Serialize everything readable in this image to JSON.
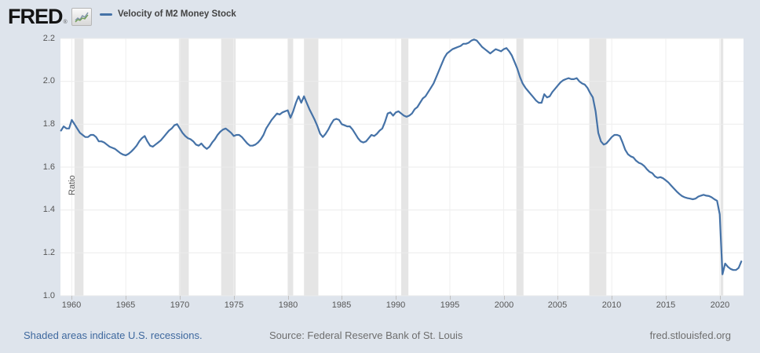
{
  "header": {
    "logo": "FRED",
    "registered": "®",
    "legend_label": "Velocity of M2 Money Stock"
  },
  "footer": {
    "note": "Shaded areas indicate U.S. recessions.",
    "source": "Source: Federal Reserve Bank of St. Louis",
    "site": "fred.stlouisfed.org"
  },
  "colors": {
    "background": "#dee4ec",
    "plot_background": "#ffffff",
    "line": "#4572a7",
    "gridline": "#ebebeb",
    "recession_band": "#e5e5e5",
    "axis_text": "#565656",
    "link_blue": "#3e689e"
  },
  "chart_data": {
    "type": "line",
    "title": "Velocity of M2 Money Stock",
    "ylabel": "Ratio",
    "legend_position": "top-left",
    "grid": true,
    "xlim": [
      1958.95,
      2022.2
    ],
    "ylim": [
      1.0,
      2.2
    ],
    "yticks": [
      1.0,
      1.2,
      1.4,
      1.6,
      1.8,
      2.0,
      2.2
    ],
    "xticks": [
      1960,
      1965,
      1970,
      1975,
      1980,
      1985,
      1990,
      1995,
      2000,
      2005,
      2010,
      2015,
      2020
    ],
    "x_start": 1959.0,
    "x_step": 0.25,
    "frequency": "quarterly",
    "recessions": [
      [
        1960.25,
        1961.08
      ],
      [
        1969.92,
        1970.83
      ],
      [
        1973.83,
        1975.17
      ],
      [
        1980.0,
        1980.5
      ],
      [
        1981.5,
        1982.83
      ],
      [
        1990.5,
        1991.17
      ],
      [
        2001.17,
        2001.83
      ],
      [
        2007.92,
        2009.5
      ],
      [
        2020.08,
        2020.33
      ]
    ],
    "values": [
      1.77,
      1.79,
      1.78,
      1.78,
      1.82,
      1.8,
      1.78,
      1.76,
      1.75,
      1.74,
      1.74,
      1.75,
      1.75,
      1.74,
      1.72,
      1.72,
      1.715,
      1.705,
      1.695,
      1.69,
      1.685,
      1.675,
      1.665,
      1.658,
      1.655,
      1.662,
      1.672,
      1.685,
      1.7,
      1.72,
      1.735,
      1.745,
      1.72,
      1.7,
      1.695,
      1.705,
      1.715,
      1.725,
      1.74,
      1.755,
      1.77,
      1.78,
      1.795,
      1.8,
      1.78,
      1.76,
      1.745,
      1.735,
      1.73,
      1.72,
      1.705,
      1.7,
      1.71,
      1.695,
      1.685,
      1.695,
      1.715,
      1.73,
      1.75,
      1.765,
      1.775,
      1.78,
      1.77,
      1.76,
      1.745,
      1.75,
      1.75,
      1.74,
      1.725,
      1.71,
      1.7,
      1.7,
      1.705,
      1.715,
      1.73,
      1.75,
      1.78,
      1.8,
      1.82,
      1.835,
      1.85,
      1.845,
      1.855,
      1.86,
      1.865,
      1.83,
      1.86,
      1.9,
      1.93,
      1.9,
      1.93,
      1.9,
      1.87,
      1.845,
      1.82,
      1.79,
      1.755,
      1.74,
      1.755,
      1.775,
      1.8,
      1.82,
      1.825,
      1.82,
      1.8,
      1.795,
      1.79,
      1.79,
      1.775,
      1.755,
      1.735,
      1.72,
      1.715,
      1.72,
      1.735,
      1.75,
      1.745,
      1.755,
      1.77,
      1.78,
      1.81,
      1.85,
      1.855,
      1.84,
      1.855,
      1.86,
      1.85,
      1.84,
      1.835,
      1.84,
      1.85,
      1.87,
      1.88,
      1.9,
      1.92,
      1.93,
      1.95,
      1.97,
      1.99,
      2.02,
      2.05,
      2.08,
      2.11,
      2.13,
      2.14,
      2.15,
      2.155,
      2.16,
      2.165,
      2.175,
      2.175,
      2.18,
      2.19,
      2.195,
      2.19,
      2.175,
      2.16,
      2.15,
      2.14,
      2.13,
      2.14,
      2.15,
      2.145,
      2.14,
      2.15,
      2.155,
      2.14,
      2.12,
      2.09,
      2.06,
      2.02,
      1.99,
      1.97,
      1.955,
      1.94,
      1.925,
      1.91,
      1.9,
      1.9,
      1.94,
      1.925,
      1.93,
      1.95,
      1.965,
      1.98,
      1.995,
      2.005,
      2.01,
      2.015,
      2.01,
      2.01,
      2.015,
      2.0,
      1.99,
      1.985,
      1.97,
      1.945,
      1.925,
      1.86,
      1.76,
      1.72,
      1.705,
      1.71,
      1.725,
      1.74,
      1.75,
      1.75,
      1.745,
      1.715,
      1.68,
      1.66,
      1.65,
      1.645,
      1.63,
      1.62,
      1.615,
      1.605,
      1.59,
      1.578,
      1.572,
      1.557,
      1.55,
      1.553,
      1.548,
      1.538,
      1.528,
      1.514,
      1.5,
      1.487,
      1.475,
      1.465,
      1.459,
      1.455,
      1.453,
      1.45,
      1.453,
      1.462,
      1.467,
      1.471,
      1.467,
      1.465,
      1.459,
      1.45,
      1.443,
      1.38,
      1.1,
      1.15,
      1.135,
      1.125,
      1.12,
      1.12,
      1.13,
      1.16
    ]
  }
}
